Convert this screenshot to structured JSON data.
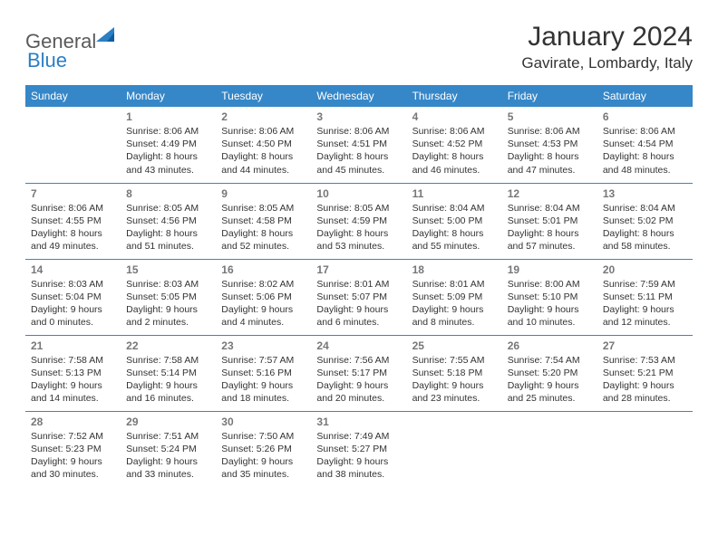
{
  "logo": {
    "text1": "General",
    "text2": "Blue"
  },
  "title": "January 2024",
  "location": "Gavirate, Lombardy, Italy",
  "header_bg": "#3687c8",
  "header_fg": "#ffffff",
  "border_color": "#3687c8",
  "daynum_color": "#777777",
  "text_color": "#333333",
  "weekdays": [
    "Sunday",
    "Monday",
    "Tuesday",
    "Wednesday",
    "Thursday",
    "Friday",
    "Saturday"
  ],
  "weeks": [
    [
      null,
      {
        "n": "1",
        "sr": "8:06 AM",
        "ss": "4:49 PM",
        "dl": "8 hours and 43 minutes."
      },
      {
        "n": "2",
        "sr": "8:06 AM",
        "ss": "4:50 PM",
        "dl": "8 hours and 44 minutes."
      },
      {
        "n": "3",
        "sr": "8:06 AM",
        "ss": "4:51 PM",
        "dl": "8 hours and 45 minutes."
      },
      {
        "n": "4",
        "sr": "8:06 AM",
        "ss": "4:52 PM",
        "dl": "8 hours and 46 minutes."
      },
      {
        "n": "5",
        "sr": "8:06 AM",
        "ss": "4:53 PM",
        "dl": "8 hours and 47 minutes."
      },
      {
        "n": "6",
        "sr": "8:06 AM",
        "ss": "4:54 PM",
        "dl": "8 hours and 48 minutes."
      }
    ],
    [
      {
        "n": "7",
        "sr": "8:06 AM",
        "ss": "4:55 PM",
        "dl": "8 hours and 49 minutes."
      },
      {
        "n": "8",
        "sr": "8:05 AM",
        "ss": "4:56 PM",
        "dl": "8 hours and 51 minutes."
      },
      {
        "n": "9",
        "sr": "8:05 AM",
        "ss": "4:58 PM",
        "dl": "8 hours and 52 minutes."
      },
      {
        "n": "10",
        "sr": "8:05 AM",
        "ss": "4:59 PM",
        "dl": "8 hours and 53 minutes."
      },
      {
        "n": "11",
        "sr": "8:04 AM",
        "ss": "5:00 PM",
        "dl": "8 hours and 55 minutes."
      },
      {
        "n": "12",
        "sr": "8:04 AM",
        "ss": "5:01 PM",
        "dl": "8 hours and 57 minutes."
      },
      {
        "n": "13",
        "sr": "8:04 AM",
        "ss": "5:02 PM",
        "dl": "8 hours and 58 minutes."
      }
    ],
    [
      {
        "n": "14",
        "sr": "8:03 AM",
        "ss": "5:04 PM",
        "dl": "9 hours and 0 minutes."
      },
      {
        "n": "15",
        "sr": "8:03 AM",
        "ss": "5:05 PM",
        "dl": "9 hours and 2 minutes."
      },
      {
        "n": "16",
        "sr": "8:02 AM",
        "ss": "5:06 PM",
        "dl": "9 hours and 4 minutes."
      },
      {
        "n": "17",
        "sr": "8:01 AM",
        "ss": "5:07 PM",
        "dl": "9 hours and 6 minutes."
      },
      {
        "n": "18",
        "sr": "8:01 AM",
        "ss": "5:09 PM",
        "dl": "9 hours and 8 minutes."
      },
      {
        "n": "19",
        "sr": "8:00 AM",
        "ss": "5:10 PM",
        "dl": "9 hours and 10 minutes."
      },
      {
        "n": "20",
        "sr": "7:59 AM",
        "ss": "5:11 PM",
        "dl": "9 hours and 12 minutes."
      }
    ],
    [
      {
        "n": "21",
        "sr": "7:58 AM",
        "ss": "5:13 PM",
        "dl": "9 hours and 14 minutes."
      },
      {
        "n": "22",
        "sr": "7:58 AM",
        "ss": "5:14 PM",
        "dl": "9 hours and 16 minutes."
      },
      {
        "n": "23",
        "sr": "7:57 AM",
        "ss": "5:16 PM",
        "dl": "9 hours and 18 minutes."
      },
      {
        "n": "24",
        "sr": "7:56 AM",
        "ss": "5:17 PM",
        "dl": "9 hours and 20 minutes."
      },
      {
        "n": "25",
        "sr": "7:55 AM",
        "ss": "5:18 PM",
        "dl": "9 hours and 23 minutes."
      },
      {
        "n": "26",
        "sr": "7:54 AM",
        "ss": "5:20 PM",
        "dl": "9 hours and 25 minutes."
      },
      {
        "n": "27",
        "sr": "7:53 AM",
        "ss": "5:21 PM",
        "dl": "9 hours and 28 minutes."
      }
    ],
    [
      {
        "n": "28",
        "sr": "7:52 AM",
        "ss": "5:23 PM",
        "dl": "9 hours and 30 minutes."
      },
      {
        "n": "29",
        "sr": "7:51 AM",
        "ss": "5:24 PM",
        "dl": "9 hours and 33 minutes."
      },
      {
        "n": "30",
        "sr": "7:50 AM",
        "ss": "5:26 PM",
        "dl": "9 hours and 35 minutes."
      },
      {
        "n": "31",
        "sr": "7:49 AM",
        "ss": "5:27 PM",
        "dl": "9 hours and 38 minutes."
      },
      null,
      null,
      null
    ]
  ],
  "labels": {
    "sunrise": "Sunrise:",
    "sunset": "Sunset:",
    "daylight": "Daylight:"
  }
}
